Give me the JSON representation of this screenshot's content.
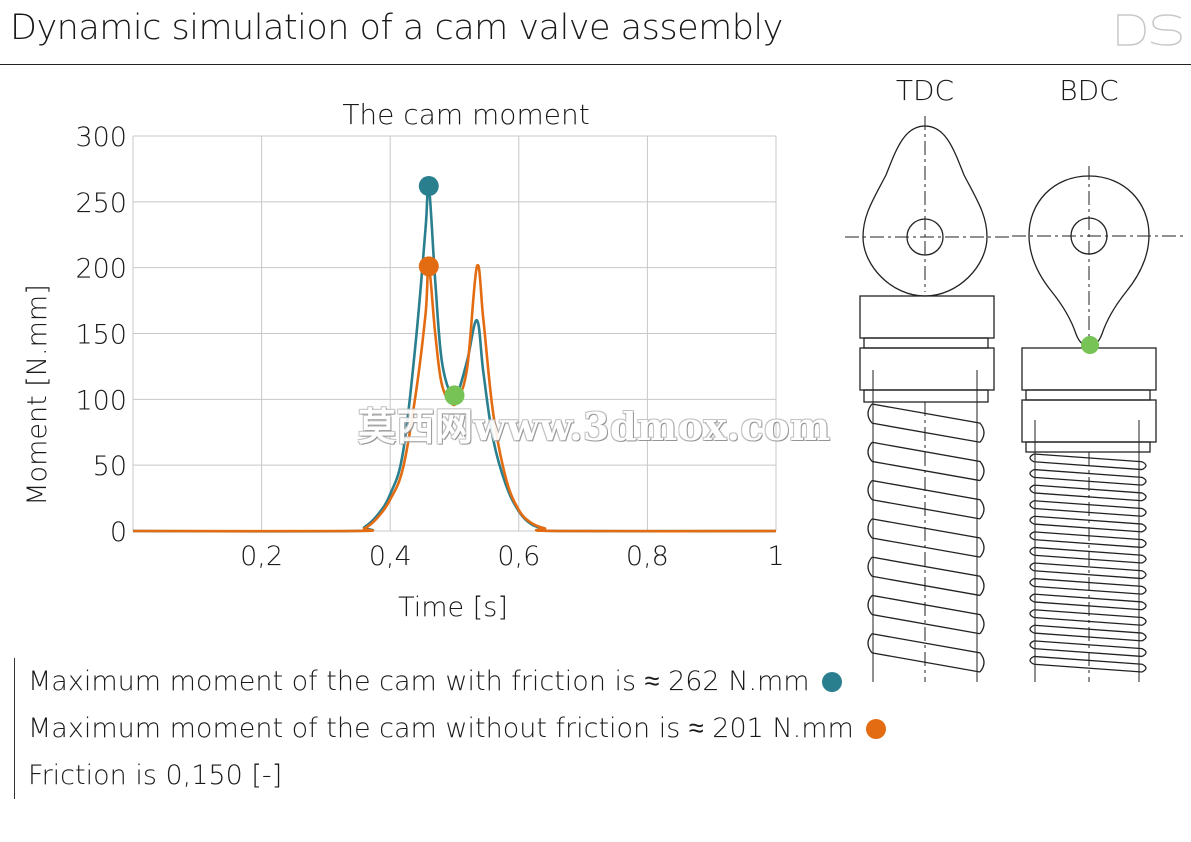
{
  "page": {
    "title": "Dynamic simulation of a cam valve assembly",
    "watermark": "莫西网www.3dmox.com"
  },
  "colors": {
    "with_friction": "#2a7f8f",
    "without_friction": "#e36c12",
    "marker_min": "#77c356",
    "grid": "#c8c8c8",
    "drawing": "#222222"
  },
  "chart_data": {
    "type": "line",
    "title": "The cam moment",
    "xlabel": "Time [s]",
    "ylabel": "Moment [N.mm]",
    "xlim": [
      0,
      1
    ],
    "ylim": [
      0,
      300
    ],
    "x_ticks": [
      0.2,
      0.4,
      0.6,
      0.8,
      1
    ],
    "x_tick_labels": [
      "0,2",
      "0,4",
      "0,6",
      "0,8",
      "1"
    ],
    "y_ticks": [
      0,
      50,
      100,
      150,
      200,
      250,
      300
    ],
    "y_tick_labels": [
      "0",
      "50",
      "100",
      "150",
      "200",
      "250",
      "300"
    ],
    "grid": true,
    "series": [
      {
        "key": "with_friction",
        "x": [
          0,
          0.34,
          0.36,
          0.38,
          0.4,
          0.42,
          0.44,
          0.455,
          0.46,
          0.47,
          0.48,
          0.495,
          0.505,
          0.52,
          0.535,
          0.545,
          0.56,
          0.58,
          0.6,
          0.62,
          0.64,
          0.66,
          1
        ],
        "values": [
          0,
          0,
          3,
          12,
          28,
          60,
          145,
          230,
          262,
          190,
          130,
          103,
          105,
          130,
          160,
          120,
          70,
          35,
          15,
          5,
          2,
          0,
          0
        ]
      },
      {
        "key": "without_friction",
        "x": [
          0,
          0.34,
          0.36,
          0.38,
          0.4,
          0.42,
          0.44,
          0.455,
          0.46,
          0.47,
          0.48,
          0.495,
          0.505,
          0.52,
          0.535,
          0.545,
          0.56,
          0.58,
          0.6,
          0.62,
          0.64,
          0.66,
          1
        ],
        "values": [
          0,
          0,
          2,
          10,
          24,
          48,
          105,
          165,
          201,
          150,
          112,
          97,
          100,
          125,
          201,
          160,
          90,
          40,
          16,
          6,
          2,
          0,
          0
        ]
      }
    ],
    "markers": [
      {
        "x": 0.46,
        "y": 262,
        "color_key": "with_friction"
      },
      {
        "x": 0.46,
        "y": 201,
        "color_key": "without_friction"
      },
      {
        "x": 0.5,
        "y": 103,
        "color_key": "marker_min"
      }
    ]
  },
  "cam_views": {
    "tdc_label": "TDC",
    "bdc_label": "BDC"
  },
  "notes": [
    {
      "text": "Maximum moment of the cam with friction is ≈ 262 N.mm",
      "color_key": "with_friction"
    },
    {
      "text": "Maximum moment of the cam without friction is ≈ 201 N.mm",
      "color_key": "without_friction"
    },
    {
      "text": "Friction is 0,150 [-]",
      "color_key": null
    }
  ]
}
